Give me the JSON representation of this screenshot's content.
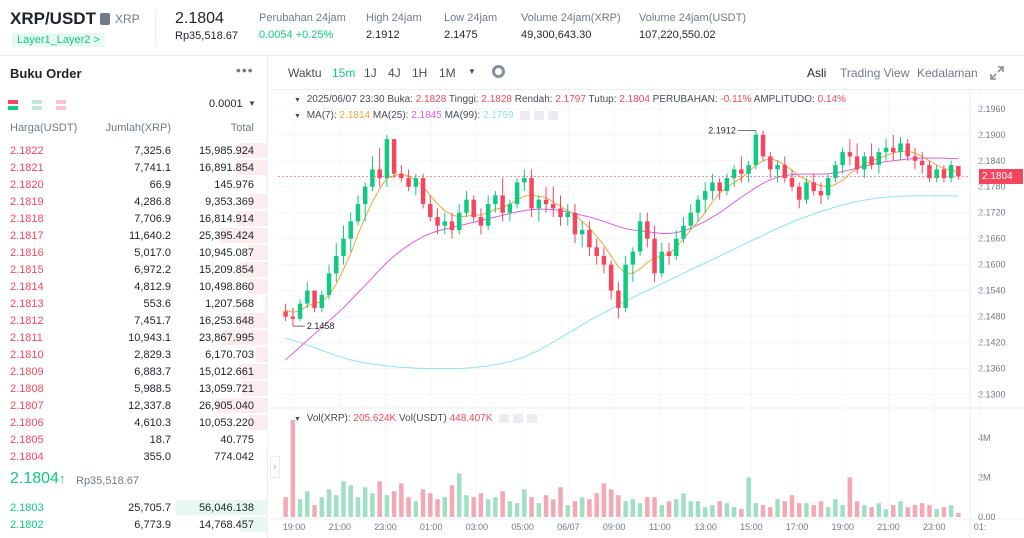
{
  "header": {
    "pair": "XRP/USDT",
    "coin": "XRP",
    "tag": "Layer1_Layer2 >",
    "last_price": "2.1804",
    "last_price_idr": "Rp35,518.67",
    "stats": [
      {
        "label": "Perubahan 24jam",
        "value": "0.0054 +0.25%",
        "up": true
      },
      {
        "label": "High 24jam",
        "value": "2.1912",
        "up": false
      },
      {
        "label": "Low 24jam",
        "value": "2.1475",
        "up": false
      },
      {
        "label": "Volume 24jam(XRP)",
        "value": "49,300,643.30",
        "up": false
      },
      {
        "label": "Volume 24jam(USDT)",
        "value": "107,220,550.02",
        "up": false
      }
    ]
  },
  "orderbook": {
    "title": "Buku Order",
    "precision": "0.0001",
    "col_price": "Harga(USDT)",
    "col_amount": "Jumlah(XRP)",
    "col_total": "Total",
    "sells": [
      {
        "price": "2.1822",
        "amount": "7,325.6",
        "total": "15,985.924",
        "depth": 0.33
      },
      {
        "price": "2.1821",
        "amount": "7,741.1",
        "total": "16,891.854",
        "depth": 0.35
      },
      {
        "price": "2.1820",
        "amount": "66.9",
        "total": "145.976",
        "depth": 0.02
      },
      {
        "price": "2.1819",
        "amount": "4,286.8",
        "total": "9,353.369",
        "depth": 0.2
      },
      {
        "price": "2.1818",
        "amount": "7,706.9",
        "total": "16,814.914",
        "depth": 0.35
      },
      {
        "price": "2.1817",
        "amount": "11,640.2",
        "total": "25,395.424",
        "depth": 0.53
      },
      {
        "price": "2.1816",
        "amount": "5,017.0",
        "total": "10,945.087",
        "depth": 0.23
      },
      {
        "price": "2.1815",
        "amount": "6,972.2",
        "total": "15,209.854",
        "depth": 0.32
      },
      {
        "price": "2.1814",
        "amount": "4,812.9",
        "total": "10,498.860",
        "depth": 0.22
      },
      {
        "price": "2.1813",
        "amount": "553.6",
        "total": "1,207.568",
        "depth": 0.03
      },
      {
        "price": "2.1812",
        "amount": "7,451.7",
        "total": "16,253.648",
        "depth": 0.34
      },
      {
        "price": "2.1811",
        "amount": "10,943.1",
        "total": "23,867.995",
        "depth": 0.5
      },
      {
        "price": "2.1810",
        "amount": "2,829.3",
        "total": "6,170.703",
        "depth": 0.13
      },
      {
        "price": "2.1809",
        "amount": "6,883.7",
        "total": "15,012.661",
        "depth": 0.32
      },
      {
        "price": "2.1808",
        "amount": "5,988.5",
        "total": "13,059.721",
        "depth": 0.28
      },
      {
        "price": "2.1807",
        "amount": "12,337.8",
        "total": "26,905.040",
        "depth": 0.56
      },
      {
        "price": "2.1806",
        "amount": "4,610.3",
        "total": "10,053.220",
        "depth": 0.21
      },
      {
        "price": "2.1805",
        "amount": "18.7",
        "total": "40.775",
        "depth": 0.01
      },
      {
        "price": "2.1804",
        "amount": "355.0",
        "total": "774.042",
        "depth": 0.02
      }
    ],
    "mid_price": "2.1804",
    "mid_arrow": "↑",
    "mid_idr": "Rp35,518.67",
    "buys": [
      {
        "price": "2.1803",
        "amount": "25,705.7",
        "total": "56,046.138",
        "depth": 1.0
      },
      {
        "price": "2.1802",
        "amount": "6,773.9",
        "total": "14,768.457",
        "depth": 0.3
      }
    ]
  },
  "toolbar": {
    "time_label": "Waktu",
    "intervals": [
      "15m",
      "1J",
      "4J",
      "1H",
      "1M"
    ],
    "active_interval": "15m",
    "views": [
      "Asli",
      "Trading View",
      "Kedalaman"
    ],
    "active_view": "Asli"
  },
  "legend": {
    "date": "2025/06/07 23:30",
    "open_label": "Buka:",
    "open": "2.1828",
    "high_label": "Tinggi:",
    "high": "2.1828",
    "low_label": "Rendah:",
    "low": "2.1797",
    "close_label": "Tutup:",
    "close": "2.1804",
    "change_label": "PERUBAHAN:",
    "change": "-0.11%",
    "amp_label": "AMPLITUDO:",
    "amp": "0.14%",
    "ma7_label": "MA(7):",
    "ma7": "2.1814",
    "ma25_label": "MA(25):",
    "ma25": "2.1845",
    "ma99_label": "MA(99):",
    "ma99": "2.1759",
    "vol_xrp_label": "Vol(XRP):",
    "vol_xrp": "205.624K",
    "vol_usdt_label": "Vol(USDT)",
    "vol_usdt": "448.407K"
  },
  "colors": {
    "up": "#0ecb81",
    "down": "#f6465d",
    "ma7": "#f0a63a",
    "ma25": "#e05ce6",
    "ma99": "#8be3f0"
  },
  "chart_data": {
    "type": "candlestick",
    "price_axis_ticks": [
      "2.1960",
      "2.1900",
      "2.1840",
      "2.1780",
      "2.1720",
      "2.1660",
      "2.1600",
      "2.1540",
      "2.1480",
      "2.1420",
      "2.1360",
      "2.1300"
    ],
    "ylim": [
      2.1285,
      2.1985
    ],
    "volume_axis_ticks": [
      "4M",
      "2M",
      "0.00"
    ],
    "vol_max": 5000000,
    "time_axis_ticks": [
      "19:00",
      "21:00",
      "23:00",
      "01:00",
      "03:00",
      "05:00",
      "06/07",
      "09:00",
      "11:00",
      "13:00",
      "15:00",
      "17:00",
      "19:00",
      "21:00",
      "23:00",
      "01:"
    ],
    "high_annotation": "2.1912",
    "low_annotation": "2.1458",
    "current_price": "2.1804",
    "current_price_value": 2.1804,
    "candles_ohlc": [
      [
        2.1492,
        2.151,
        2.147,
        2.148
      ],
      [
        2.148,
        2.15,
        2.1458,
        2.1475
      ],
      [
        2.1475,
        2.152,
        2.147,
        2.151
      ],
      [
        2.151,
        2.156,
        2.15,
        2.154
      ],
      [
        2.154,
        2.1535,
        2.149,
        2.15
      ],
      [
        2.15,
        2.154,
        2.149,
        2.153
      ],
      [
        2.153,
        2.16,
        2.152,
        2.158
      ],
      [
        2.158,
        2.165,
        2.156,
        2.162
      ],
      [
        2.162,
        2.169,
        2.16,
        2.166
      ],
      [
        2.166,
        2.172,
        2.163,
        2.17
      ],
      [
        2.17,
        2.176,
        2.169,
        2.174
      ],
      [
        2.174,
        2.179,
        2.17,
        2.178
      ],
      [
        2.178,
        2.185,
        2.177,
        2.182
      ],
      [
        2.182,
        2.187,
        2.178,
        2.18
      ],
      [
        2.18,
        2.19,
        2.178,
        2.189
      ],
      [
        2.189,
        2.185,
        2.18,
        2.181
      ],
      [
        2.181,
        2.183,
        2.179,
        2.18
      ],
      [
        2.18,
        2.182,
        2.177,
        2.178
      ],
      [
        2.178,
        2.181,
        2.176,
        2.18
      ],
      [
        2.18,
        2.181,
        2.173,
        2.174
      ],
      [
        2.174,
        2.176,
        2.17,
        2.171
      ],
      [
        2.171,
        2.173,
        2.167,
        2.169
      ],
      [
        2.169,
        2.172,
        2.167,
        2.17
      ],
      [
        2.17,
        2.172,
        2.166,
        2.168
      ],
      [
        2.168,
        2.174,
        2.167,
        2.172
      ],
      [
        2.172,
        2.177,
        2.171,
        2.175
      ],
      [
        2.175,
        2.176,
        2.17,
        2.171
      ],
      [
        2.171,
        2.173,
        2.167,
        2.169
      ],
      [
        2.169,
        2.176,
        2.168,
        2.174
      ],
      [
        2.174,
        2.177,
        2.172,
        2.176
      ],
      [
        2.176,
        2.18,
        2.17,
        2.172
      ],
      [
        2.172,
        2.175,
        2.17,
        2.174
      ],
      [
        2.174,
        2.18,
        2.173,
        2.179
      ],
      [
        2.179,
        2.182,
        2.177,
        2.18
      ],
      [
        2.18,
        2.182,
        2.171,
        2.173
      ],
      [
        2.173,
        2.176,
        2.17,
        2.175
      ],
      [
        2.175,
        2.178,
        2.172,
        2.174
      ],
      [
        2.174,
        2.178,
        2.171,
        2.173
      ],
      [
        2.173,
        2.176,
        2.169,
        2.171
      ],
      [
        2.171,
        2.174,
        2.169,
        2.172
      ],
      [
        2.172,
        2.174,
        2.165,
        2.167
      ],
      [
        2.167,
        2.17,
        2.164,
        2.168
      ],
      [
        2.168,
        2.17,
        2.162,
        2.164
      ],
      [
        2.164,
        2.166,
        2.16,
        2.162
      ],
      [
        2.162,
        2.164,
        2.158,
        2.16
      ],
      [
        2.16,
        2.161,
        2.152,
        2.154
      ],
      [
        2.154,
        2.156,
        2.1476,
        2.15
      ],
      [
        2.15,
        2.162,
        2.149,
        2.16
      ],
      [
        2.16,
        2.164,
        2.156,
        2.163
      ],
      [
        2.163,
        2.172,
        2.162,
        2.17
      ],
      [
        2.17,
        2.172,
        2.164,
        2.166
      ],
      [
        2.166,
        2.169,
        2.156,
        2.158
      ],
      [
        2.158,
        2.165,
        2.157,
        2.163
      ],
      [
        2.163,
        2.165,
        2.16,
        2.162
      ],
      [
        2.162,
        2.168,
        2.161,
        2.166
      ],
      [
        2.166,
        2.171,
        2.165,
        2.169
      ],
      [
        2.169,
        2.174,
        2.168,
        2.172
      ],
      [
        2.172,
        2.176,
        2.17,
        2.175
      ],
      [
        2.175,
        2.179,
        2.172,
        2.177
      ],
      [
        2.177,
        2.181,
        2.175,
        2.179
      ],
      [
        2.179,
        2.18,
        2.175,
        2.177
      ],
      [
        2.177,
        2.181,
        2.176,
        2.18
      ],
      [
        2.18,
        2.183,
        2.178,
        2.182
      ],
      [
        2.182,
        2.185,
        2.179,
        2.181
      ],
      [
        2.181,
        2.184,
        2.179,
        2.183
      ],
      [
        2.183,
        2.191,
        2.182,
        2.19
      ],
      [
        2.19,
        2.191,
        2.184,
        2.185
      ],
      [
        2.185,
        2.186,
        2.18,
        2.182
      ],
      [
        2.182,
        2.184,
        2.179,
        2.183
      ],
      [
        2.183,
        2.185,
        2.179,
        2.18
      ],
      [
        2.18,
        2.182,
        2.177,
        2.178
      ],
      [
        2.178,
        2.179,
        2.173,
        2.175
      ],
      [
        2.175,
        2.18,
        2.174,
        2.179
      ],
      [
        2.179,
        2.181,
        2.176,
        2.177
      ],
      [
        2.177,
        2.179,
        2.174,
        2.176
      ],
      [
        2.176,
        2.181,
        2.175,
        2.18
      ],
      [
        2.18,
        2.184,
        2.179,
        2.183
      ],
      [
        2.183,
        2.187,
        2.181,
        2.186
      ],
      [
        2.186,
        2.189,
        2.183,
        2.185
      ],
      [
        2.185,
        2.188,
        2.181,
        2.182
      ],
      [
        2.182,
        2.186,
        2.18,
        2.185
      ],
      [
        2.185,
        2.188,
        2.182,
        2.183
      ],
      [
        2.183,
        2.187,
        2.181,
        2.186
      ],
      [
        2.186,
        2.189,
        2.184,
        2.187
      ],
      [
        2.187,
        2.19,
        2.184,
        2.186
      ],
      [
        2.186,
        2.1895,
        2.184,
        2.188
      ],
      [
        2.188,
        2.189,
        2.184,
        2.185
      ],
      [
        2.185,
        2.187,
        2.182,
        2.184
      ],
      [
        2.184,
        2.186,
        2.181,
        2.183
      ],
      [
        2.183,
        2.184,
        2.179,
        2.18
      ],
      [
        2.18,
        2.183,
        2.179,
        2.182
      ],
      [
        2.182,
        2.183,
        2.179,
        2.18
      ],
      [
        2.18,
        2.184,
        2.179,
        2.183
      ],
      [
        2.1828,
        2.1828,
        2.1797,
        2.1804
      ]
    ],
    "volumes": [
      1.0,
      4.9,
      0.9,
      1.3,
      0.6,
      1.0,
      1.4,
      1.1,
      1.8,
      1.6,
      1.0,
      1.5,
      1.2,
      1.8,
      1.1,
      1.3,
      1.7,
      1.0,
      0.8,
      1.4,
      1.2,
      0.9,
      1.0,
      1.6,
      2.2,
      1.1,
      1.0,
      1.2,
      0.9,
      1.0,
      1.3,
      0.8,
      0.7,
      1.4,
      1.0,
      0.7,
      1.1,
      0.9,
      1.5,
      0.6,
      0.8,
      1.0,
      0.9,
      1.2,
      1.7,
      1.4,
      1.1,
      0.8,
      0.9,
      0.7,
      1.0,
      1.0,
      0.6,
      0.8,
      0.9,
      1.2,
      0.8,
      0.8,
      0.5,
      0.6,
      0.8,
      0.7,
      0.5,
      0.4,
      2.0,
      0.7,
      0.6,
      0.5,
      0.9,
      0.8,
      1.1,
      0.7,
      0.7,
      0.6,
      0.8,
      0.5,
      0.9,
      0.6,
      2.0,
      0.8,
      0.6,
      0.5,
      0.7,
      0.4,
      0.6,
      0.8,
      0.5,
      0.6,
      0.7,
      0.6,
      0.4,
      0.5,
      0.6,
      0.2
    ],
    "ma7": [
      2.1495,
      2.149,
      2.1493,
      2.1505,
      2.151,
      2.1515,
      2.153,
      2.1555,
      2.159,
      2.1625,
      2.167,
      2.171,
      2.1745,
      2.1775,
      2.18,
      2.1805,
      2.181,
      2.1805,
      2.1795,
      2.178,
      2.176,
      2.174,
      2.1725,
      2.1715,
      2.171,
      2.1712,
      2.1714,
      2.1715,
      2.172,
      2.1728,
      2.1732,
      2.174,
      2.175,
      2.1758,
      2.176,
      2.1758,
      2.1755,
      2.1745,
      2.1735,
      2.1725,
      2.1715,
      2.17,
      2.1685,
      2.1665,
      2.1645,
      2.162,
      2.1595,
      2.158,
      2.158,
      2.159,
      2.1605,
      2.1615,
      2.162,
      2.1625,
      2.164,
      2.166,
      2.168,
      2.17,
      2.172,
      2.1745,
      2.1765,
      2.178,
      2.179,
      2.18,
      2.1815,
      2.183,
      2.184,
      2.1845,
      2.184,
      2.183,
      2.1818,
      2.1805,
      2.1795,
      2.1788,
      2.1782,
      2.178,
      2.1785,
      2.1795,
      2.181,
      2.1822,
      2.1832,
      2.184,
      2.1845,
      2.1852,
      2.1858,
      2.1862,
      2.1862,
      2.1858,
      2.185,
      2.184,
      2.183,
      2.1822,
      2.1818,
      2.1814
    ],
    "ma25": [
      2.138,
      2.1395,
      2.141,
      2.1425,
      2.144,
      2.1455,
      2.147,
      2.1485,
      2.15,
      2.1518,
      2.1535,
      2.1552,
      2.157,
      2.1588,
      2.1605,
      2.162,
      2.1633,
      2.1645,
      2.1655,
      2.1665,
      2.1672,
      2.1678,
      2.1682,
      2.1686,
      2.169,
      2.1694,
      2.1698,
      2.1702,
      2.1706,
      2.171,
      2.1714,
      2.1718,
      2.1722,
      2.1725,
      2.1727,
      2.1728,
      2.1728,
      2.1727,
      2.1725,
      2.1722,
      2.1718,
      2.1714,
      2.171,
      2.1705,
      2.17,
      2.1694,
      2.1688,
      2.1683,
      2.168,
      2.1678,
      2.1676,
      2.1674,
      2.1672,
      2.1672,
      2.1674,
      2.1678,
      2.1684,
      2.1692,
      2.17,
      2.171,
      2.172,
      2.1732,
      2.1744,
      2.1756,
      2.1767,
      2.1778,
      2.1788,
      2.1796,
      2.1802,
      2.1806,
      2.1808,
      2.1809,
      2.1809,
      2.1809,
      2.1809,
      2.181,
      2.1812,
      2.1815,
      2.1819,
      2.1823,
      2.1827,
      2.1831,
      2.1835,
      2.1838,
      2.184,
      2.1842,
      2.1844,
      2.1845,
      2.1846,
      2.1846,
      2.1846,
      2.1846,
      2.1845,
      2.1845
    ],
    "ma99": [
      2.143,
      2.1425,
      2.142,
      2.1414,
      2.1408,
      2.1402,
      2.1396,
      2.139,
      2.1385,
      2.138,
      2.1376,
      2.1373,
      2.137,
      2.1368,
      2.1366,
      2.1364,
      2.1363,
      2.1362,
      2.1361,
      2.136,
      2.136,
      2.136,
      2.136,
      2.136,
      2.136,
      2.1361,
      2.1362,
      2.1364,
      2.1366,
      2.1369,
      2.1372,
      2.1376,
      2.1381,
      2.1387,
      2.1394,
      2.1402,
      2.1411,
      2.1421,
      2.1431,
      2.1441,
      2.1451,
      2.1461,
      2.1471,
      2.148,
      2.1489,
      2.1498,
      2.1507,
      2.1516,
      2.1524,
      2.1532,
      2.154,
      2.1548,
      2.1556,
      2.1564,
      2.1572,
      2.158,
      2.1588,
      2.1596,
      2.1604,
      2.1612,
      2.162,
      2.1628,
      2.1636,
      2.1644,
      2.1652,
      2.166,
      2.1668,
      2.1676,
      2.1684,
      2.1691,
      2.1698,
      2.1705,
      2.1711,
      2.1717,
      2.1723,
      2.1728,
      2.1733,
      2.1738,
      2.1742,
      2.1746,
      2.1749,
      2.1752,
      2.1754,
      2.1756,
      2.1757,
      2.1758,
      2.1759,
      2.1759,
      2.1759,
      2.1759,
      2.1759,
      2.1759,
      2.1759,
      2.1759
    ]
  }
}
